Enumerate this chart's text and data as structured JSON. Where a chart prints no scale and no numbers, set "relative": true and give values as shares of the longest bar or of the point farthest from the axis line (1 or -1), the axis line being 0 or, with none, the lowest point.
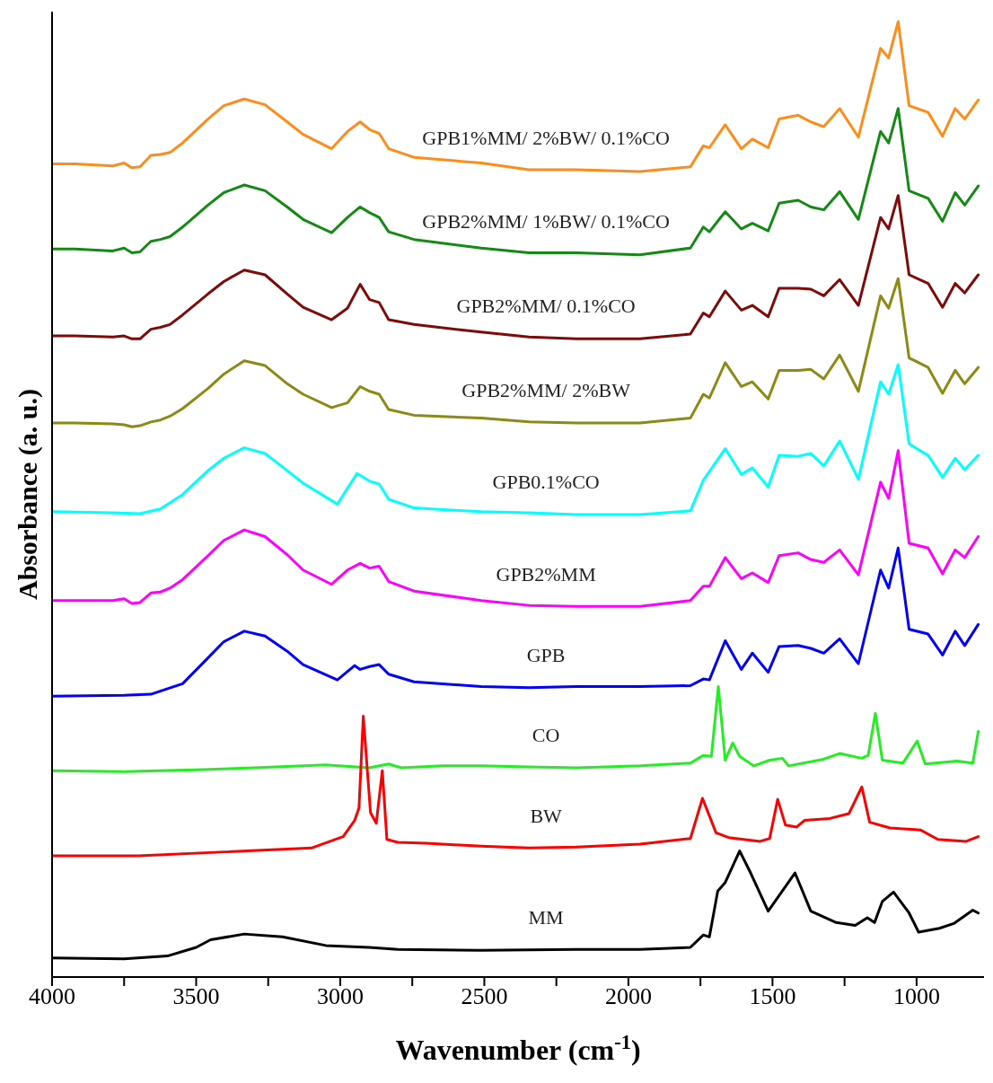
{
  "chart_data": {
    "type": "line",
    "relative": true,
    "xlabel": "Wavenumber (cm$^{-1}$)",
    "ylabel": "Absorbance (a. u.)",
    "xlim": [
      4000,
      766
    ],
    "xticks": [
      4000,
      {
        "value": 3750,
        "label": null
      },
      3500,
      {
        "value": 3250,
        "label": null
      },
      3000,
      {
        "value": 2750,
        "label": null
      },
      2500,
      {
        "value": 2250,
        "label": null
      },
      2000,
      {
        "value": 1750,
        "label": null
      },
      1500,
      {
        "value": 1250,
        "label": null
      },
      1000
    ],
    "series": [
      {
        "name": "GPB1%MM/ 2%BW/ 0.1%CO",
        "color": "#ff8c1a",
        "x": [
          4000,
          3921,
          3789,
          3750,
          3723,
          3695,
          3657,
          3624,
          3591,
          3547,
          3459,
          3404,
          3333,
          3261,
          3184,
          3129,
          3030,
          2975,
          2931,
          2898,
          2865,
          2832,
          2744,
          2511,
          2345,
          2181,
          1960,
          1785,
          1740,
          1719,
          1664,
          1608,
          1570,
          1515,
          1477,
          1411,
          1367,
          1322,
          1267,
          1202,
          1125,
          1097,
          1064,
          1026,
          960,
          910,
          866,
          833,
          786
        ],
        "values": [
          0.851,
          0.851,
          0.849,
          0.852,
          0.847,
          0.848,
          0.86,
          0.861,
          0.863,
          0.873,
          0.898,
          0.912,
          0.919,
          0.913,
          0.895,
          0.882,
          0.867,
          0.885,
          0.895,
          0.887,
          0.883,
          0.867,
          0.858,
          0.852,
          0.845,
          0.845,
          0.843,
          0.848,
          0.87,
          0.868,
          0.892,
          0.867,
          0.877,
          0.868,
          0.898,
          0.902,
          0.895,
          0.89,
          0.909,
          0.879,
          0.972,
          0.962,
          1.0,
          0.912,
          0.905,
          0.88,
          0.909,
          0.898,
          0.918
        ]
      },
      {
        "name": "GPB2%MM/ 1%BW/ 0.1%CO",
        "color": "#138a13",
        "x": [
          4000,
          3921,
          3789,
          3750,
          3723,
          3695,
          3657,
          3624,
          3591,
          3547,
          3459,
          3404,
          3333,
          3261,
          3184,
          3129,
          3030,
          2975,
          2931,
          2898,
          2865,
          2832,
          2744,
          2511,
          2345,
          2181,
          1960,
          1785,
          1740,
          1719,
          1664,
          1608,
          1570,
          1515,
          1477,
          1411,
          1367,
          1322,
          1267,
          1202,
          1125,
          1097,
          1064,
          1026,
          960,
          910,
          866,
          833,
          786
        ],
        "values": [
          0.762,
          0.762,
          0.76,
          0.763,
          0.758,
          0.759,
          0.77,
          0.772,
          0.775,
          0.785,
          0.808,
          0.821,
          0.829,
          0.823,
          0.806,
          0.793,
          0.779,
          0.795,
          0.806,
          0.8,
          0.795,
          0.78,
          0.772,
          0.763,
          0.758,
          0.758,
          0.756,
          0.763,
          0.785,
          0.78,
          0.801,
          0.783,
          0.789,
          0.781,
          0.81,
          0.813,
          0.806,
          0.803,
          0.822,
          0.793,
          0.885,
          0.873,
          0.909,
          0.823,
          0.815,
          0.791,
          0.821,
          0.808,
          0.828
        ]
      },
      {
        "name": "GPB2%MM/ 0.1%CO",
        "color": "#7f0a0a",
        "x": [
          4000,
          3921,
          3789,
          3750,
          3723,
          3695,
          3657,
          3624,
          3591,
          3547,
          3459,
          3404,
          3333,
          3261,
          3184,
          3129,
          3030,
          2975,
          2931,
          2898,
          2865,
          2832,
          2744,
          2511,
          2345,
          2181,
          1960,
          1785,
          1740,
          1719,
          1664,
          1608,
          1570,
          1515,
          1477,
          1411,
          1367,
          1322,
          1267,
          1202,
          1125,
          1097,
          1064,
          1026,
          960,
          910,
          866,
          833,
          786
        ],
        "values": [
          0.671,
          0.671,
          0.67,
          0.671,
          0.668,
          0.668,
          0.678,
          0.68,
          0.683,
          0.693,
          0.715,
          0.728,
          0.74,
          0.735,
          0.715,
          0.701,
          0.688,
          0.7,
          0.725,
          0.709,
          0.706,
          0.688,
          0.683,
          0.675,
          0.67,
          0.668,
          0.668,
          0.673,
          0.695,
          0.691,
          0.718,
          0.698,
          0.703,
          0.691,
          0.721,
          0.721,
          0.72,
          0.713,
          0.73,
          0.703,
          0.795,
          0.783,
          0.818,
          0.735,
          0.726,
          0.701,
          0.726,
          0.716,
          0.735
        ]
      },
      {
        "name": "GPB2%MM/ 2%BW",
        "color": "#8a8a14",
        "x": [
          4000,
          3921,
          3789,
          3750,
          3723,
          3695,
          3657,
          3624,
          3591,
          3547,
          3459,
          3404,
          3333,
          3261,
          3184,
          3129,
          3030,
          2975,
          2931,
          2898,
          2865,
          2832,
          2744,
          2511,
          2345,
          2181,
          1960,
          1785,
          1740,
          1719,
          1664,
          1608,
          1570,
          1515,
          1477,
          1411,
          1367,
          1322,
          1267,
          1202,
          1125,
          1097,
          1064,
          1026,
          960,
          910,
          866,
          833,
          786
        ],
        "values": [
          0.58,
          0.58,
          0.579,
          0.578,
          0.576,
          0.577,
          0.581,
          0.583,
          0.587,
          0.595,
          0.616,
          0.631,
          0.645,
          0.64,
          0.621,
          0.61,
          0.596,
          0.601,
          0.618,
          0.613,
          0.61,
          0.594,
          0.588,
          0.585,
          0.581,
          0.58,
          0.58,
          0.585,
          0.61,
          0.606,
          0.643,
          0.618,
          0.623,
          0.605,
          0.635,
          0.635,
          0.636,
          0.626,
          0.651,
          0.613,
          0.713,
          0.7,
          0.731,
          0.648,
          0.638,
          0.611,
          0.635,
          0.621,
          0.638
        ]
      },
      {
        "name": "GPB0.1%CO",
        "color": "#00ffff",
        "x": [
          4000,
          3789,
          3695,
          3624,
          3547,
          3459,
          3404,
          3333,
          3261,
          3184,
          3129,
          3010,
          2942,
          2898,
          2865,
          2832,
          2744,
          2511,
          2345,
          2181,
          1960,
          1785,
          1740,
          1664,
          1608,
          1570,
          1515,
          1477,
          1411,
          1367,
          1322,
          1267,
          1202,
          1125,
          1097,
          1064,
          1026,
          960,
          910,
          866,
          833,
          786
        ],
        "values": [
          0.487,
          0.486,
          0.485,
          0.49,
          0.505,
          0.53,
          0.543,
          0.554,
          0.548,
          0.53,
          0.517,
          0.495,
          0.527,
          0.519,
          0.516,
          0.5,
          0.491,
          0.487,
          0.486,
          0.484,
          0.484,
          0.488,
          0.52,
          0.553,
          0.526,
          0.533,
          0.513,
          0.546,
          0.545,
          0.548,
          0.535,
          0.561,
          0.521,
          0.623,
          0.61,
          0.641,
          0.558,
          0.546,
          0.523,
          0.543,
          0.531,
          0.546
        ]
      },
      {
        "name": "GPB2%MM",
        "color": "#ff00ff",
        "x": [
          4000,
          3921,
          3789,
          3750,
          3723,
          3695,
          3657,
          3624,
          3591,
          3547,
          3459,
          3404,
          3333,
          3261,
          3184,
          3129,
          3030,
          2975,
          2931,
          2898,
          2865,
          2832,
          2744,
          2511,
          2345,
          2181,
          1960,
          1785,
          1740,
          1719,
          1664,
          1608,
          1570,
          1515,
          1477,
          1411,
          1367,
          1322,
          1267,
          1202,
          1125,
          1097,
          1064,
          1026,
          960,
          910,
          866,
          833,
          786
        ],
        "values": [
          0.394,
          0.394,
          0.394,
          0.396,
          0.391,
          0.392,
          0.402,
          0.403,
          0.407,
          0.416,
          0.441,
          0.457,
          0.468,
          0.461,
          0.442,
          0.426,
          0.411,
          0.426,
          0.433,
          0.428,
          0.43,
          0.414,
          0.404,
          0.394,
          0.389,
          0.388,
          0.388,
          0.394,
          0.409,
          0.409,
          0.439,
          0.417,
          0.423,
          0.413,
          0.441,
          0.444,
          0.437,
          0.434,
          0.447,
          0.421,
          0.518,
          0.501,
          0.551,
          0.454,
          0.449,
          0.422,
          0.447,
          0.439,
          0.461
        ]
      },
      {
        "name": "GPB",
        "color": "#0000ff",
        "x": [
          4000,
          3750,
          3657,
          3547,
          3459,
          3404,
          3333,
          3261,
          3184,
          3129,
          3010,
          2950,
          2931,
          2898,
          2865,
          2832,
          2744,
          2511,
          2345,
          2181,
          1960,
          1785,
          1740,
          1719,
          1664,
          1608,
          1570,
          1515,
          1477,
          1411,
          1367,
          1322,
          1267,
          1202,
          1125,
          1097,
          1064,
          1026,
          960,
          910,
          866,
          833,
          786
        ],
        "values": [
          0.294,
          0.295,
          0.296,
          0.307,
          0.334,
          0.351,
          0.362,
          0.357,
          0.341,
          0.327,
          0.311,
          0.326,
          0.322,
          0.325,
          0.327,
          0.317,
          0.309,
          0.304,
          0.303,
          0.304,
          0.304,
          0.305,
          0.312,
          0.311,
          0.352,
          0.322,
          0.339,
          0.319,
          0.346,
          0.347,
          0.344,
          0.339,
          0.354,
          0.328,
          0.426,
          0.407,
          0.449,
          0.364,
          0.359,
          0.337,
          0.362,
          0.347,
          0.369
        ]
      },
      {
        "name": "CO",
        "color": "#22ee22",
        "x": [
          4000,
          3750,
          3500,
          3300,
          3052,
          2900,
          2832,
          2788,
          2645,
          2511,
          2345,
          2181,
          1960,
          1785,
          1740,
          1712,
          1688,
          1664,
          1638,
          1614,
          1565,
          1510,
          1466,
          1444,
          1323,
          1267,
          1190,
          1168,
          1143,
          1119,
          1047,
          998,
          970,
          860,
          805,
          786
        ],
        "values": [
          0.216,
          0.215,
          0.217,
          0.219,
          0.222,
          0.219,
          0.223,
          0.219,
          0.221,
          0.221,
          0.22,
          0.219,
          0.221,
          0.224,
          0.232,
          0.231,
          0.304,
          0.227,
          0.245,
          0.231,
          0.221,
          0.227,
          0.229,
          0.221,
          0.228,
          0.234,
          0.229,
          0.232,
          0.276,
          0.227,
          0.224,
          0.247,
          0.223,
          0.226,
          0.224,
          0.257
        ]
      },
      {
        "name": "BW",
        "color": "#ff0000",
        "x": [
          4000,
          3700,
          3400,
          3100,
          2990,
          2950,
          2935,
          2920,
          2895,
          2875,
          2854,
          2838,
          2800,
          2700,
          2511,
          2345,
          2181,
          1960,
          1785,
          1743,
          1696,
          1652,
          1543,
          1510,
          1482,
          1455,
          1416,
          1389,
          1301,
          1235,
          1190,
          1163,
          1092,
          987,
          926,
          828,
          786
        ],
        "values": [
          0.127,
          0.127,
          0.131,
          0.135,
          0.147,
          0.164,
          0.177,
          0.273,
          0.172,
          0.161,
          0.216,
          0.144,
          0.141,
          0.14,
          0.137,
          0.135,
          0.136,
          0.139,
          0.145,
          0.187,
          0.151,
          0.146,
          0.142,
          0.145,
          0.186,
          0.159,
          0.157,
          0.164,
          0.166,
          0.171,
          0.199,
          0.162,
          0.156,
          0.154,
          0.144,
          0.142,
          0.147
        ]
      },
      {
        "name": "MM",
        "color": "#000000",
        "x": [
          4000,
          3750,
          3600,
          3500,
          3450,
          3333,
          3200,
          3050,
          2900,
          2800,
          2511,
          2181,
          1960,
          1785,
          1740,
          1719,
          1690,
          1664,
          1614,
          1576,
          1515,
          1422,
          1367,
          1279,
          1213,
          1171,
          1146,
          1119,
          1080,
          1026,
          993,
          921,
          871,
          805,
          786
        ],
        "values": [
          0.02,
          0.019,
          0.022,
          0.031,
          0.039,
          0.045,
          0.042,
          0.033,
          0.031,
          0.029,
          0.028,
          0.029,
          0.029,
          0.031,
          0.044,
          0.042,
          0.09,
          0.099,
          0.132,
          0.109,
          0.069,
          0.109,
          0.069,
          0.057,
          0.054,
          0.062,
          0.057,
          0.079,
          0.089,
          0.067,
          0.047,
          0.051,
          0.056,
          0.07,
          0.067
        ]
      }
    ]
  }
}
